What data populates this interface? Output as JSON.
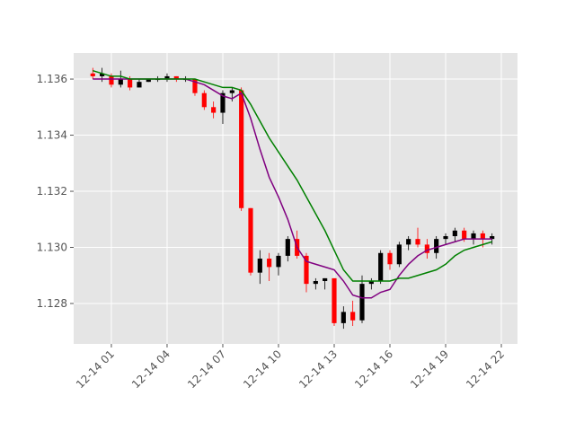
{
  "chart_data": {
    "type": "candlestick",
    "x": [
      0,
      0.5,
      1,
      1.5,
      2,
      2.5,
      3,
      3.5,
      4,
      4.5,
      5,
      5.5,
      6,
      6.5,
      7,
      7.5,
      8,
      8.5,
      9,
      9.5,
      10,
      10.5,
      11,
      11.5,
      12,
      12.5,
      13,
      13.5,
      14,
      14.5,
      15,
      15.5,
      16,
      16.5,
      17,
      17.5,
      18,
      18.5,
      19,
      19.5,
      20,
      20.5,
      21,
      21.5
    ],
    "open": [
      1.1362,
      1.1361,
      1.1361,
      1.1358,
      1.136,
      1.1357,
      1.1359,
      1.136,
      1.136,
      1.1361,
      1.136,
      1.136,
      1.1355,
      1.135,
      1.1348,
      1.1355,
      1.1356,
      1.1314,
      1.1291,
      1.1296,
      1.1293,
      1.1297,
      1.1303,
      1.1297,
      1.1287,
      1.1288,
      1.1289,
      1.1273,
      1.1277,
      1.1274,
      1.1287,
      1.1288,
      1.1298,
      1.1294,
      1.1301,
      1.1303,
      1.1301,
      1.1298,
      1.1303,
      1.1304,
      1.1306,
      1.1303,
      1.1305,
      1.1303
    ],
    "high": [
      1.1364,
      1.1364,
      1.1362,
      1.1363,
      1.1361,
      1.136,
      1.136,
      1.1361,
      1.1362,
      1.1361,
      1.1361,
      1.136,
      1.1356,
      1.1352,
      1.1356,
      1.1357,
      1.1357,
      1.1314,
      1.1299,
      1.1298,
      1.1298,
      1.1304,
      1.1306,
      1.1298,
      1.1289,
      1.1289,
      1.1289,
      1.1279,
      1.1281,
      1.129,
      1.1289,
      1.1299,
      1.1299,
      1.1302,
      1.1304,
      1.1307,
      1.1303,
      1.1304,
      1.1305,
      1.1307,
      1.1307,
      1.1306,
      1.1306,
      1.1305
    ],
    "low": [
      1.136,
      1.1359,
      1.1357,
      1.1357,
      1.1356,
      1.1357,
      1.1359,
      1.1359,
      1.1359,
      1.1359,
      1.1359,
      1.1354,
      1.1349,
      1.1346,
      1.1344,
      1.1352,
      1.1313,
      1.129,
      1.1287,
      1.1288,
      1.129,
      1.1295,
      1.1296,
      1.1284,
      1.1285,
      1.1285,
      1.1272,
      1.1271,
      1.1272,
      1.1273,
      1.1285,
      1.1287,
      1.1292,
      1.1293,
      1.1299,
      1.13,
      1.1296,
      1.1296,
      1.1301,
      1.1302,
      1.1302,
      1.1301,
      1.13,
      1.1301
    ],
    "close": [
      1.1361,
      1.1362,
      1.1358,
      1.136,
      1.1357,
      1.1359,
      1.136,
      1.136,
      1.1361,
      1.136,
      1.136,
      1.1355,
      1.135,
      1.1348,
      1.1355,
      1.1356,
      1.1314,
      1.1291,
      1.1296,
      1.1293,
      1.1297,
      1.1303,
      1.1297,
      1.1287,
      1.1288,
      1.1289,
      1.1273,
      1.1277,
      1.1274,
      1.1287,
      1.1288,
      1.1298,
      1.1294,
      1.1301,
      1.1303,
      1.1301,
      1.1298,
      1.1303,
      1.1304,
      1.1306,
      1.1303,
      1.1305,
      1.1303,
      1.1304
    ],
    "up_color": "#000000",
    "down_color": "#ff0000",
    "lines": [
      {
        "color": "#800080",
        "values": [
          1.136,
          1.136,
          1.136,
          1.136,
          1.136,
          1.136,
          1.136,
          1.136,
          1.136,
          1.136,
          1.136,
          1.1359,
          1.1358,
          1.1356,
          1.1354,
          1.1353,
          1.1355,
          1.1346,
          1.1335,
          1.1325,
          1.1318,
          1.131,
          1.13,
          1.1295,
          1.1294,
          1.1293,
          1.1292,
          1.1288,
          1.1283,
          1.1282,
          1.1282,
          1.1284,
          1.1285,
          1.129,
          1.1294,
          1.1297,
          1.1299,
          1.13,
          1.1301,
          1.1302,
          1.1303,
          1.1303,
          1.1303,
          1.1303
        ]
      },
      {
        "color": "#008000",
        "values": [
          1.1363,
          1.1362,
          1.1361,
          1.1361,
          1.136,
          1.136,
          1.136,
          1.136,
          1.136,
          1.136,
          1.136,
          1.136,
          1.1359,
          1.1358,
          1.1357,
          1.1357,
          1.1356,
          1.1351,
          1.1345,
          1.1339,
          1.1334,
          1.1329,
          1.1324,
          1.1318,
          1.1312,
          1.1306,
          1.1299,
          1.1292,
          1.1288,
          1.1288,
          1.1288,
          1.1288,
          1.1288,
          1.1289,
          1.1289,
          1.129,
          1.1291,
          1.1292,
          1.1294,
          1.1297,
          1.1299,
          1.13,
          1.1301,
          1.1302
        ]
      }
    ],
    "xlim": [
      -1.03,
      22.87
    ],
    "ylim": [
      1.12656,
      1.13693
    ],
    "xticks": [
      {
        "value": 1,
        "label": "12-14 01"
      },
      {
        "value": 4,
        "label": "12-14 04"
      },
      {
        "value": 7,
        "label": "12-14 07"
      },
      {
        "value": 10,
        "label": "12-14 10"
      },
      {
        "value": 13,
        "label": "12-14 13"
      },
      {
        "value": 16,
        "label": "12-14 16"
      },
      {
        "value": 19,
        "label": "12-14 19"
      },
      {
        "value": 22,
        "label": "12-14 22"
      }
    ],
    "yticks": [
      1.128,
      {
        "value": 1.13,
        "label": "1.130"
      },
      1.132,
      1.134,
      1.136
    ],
    "grid": true
  }
}
